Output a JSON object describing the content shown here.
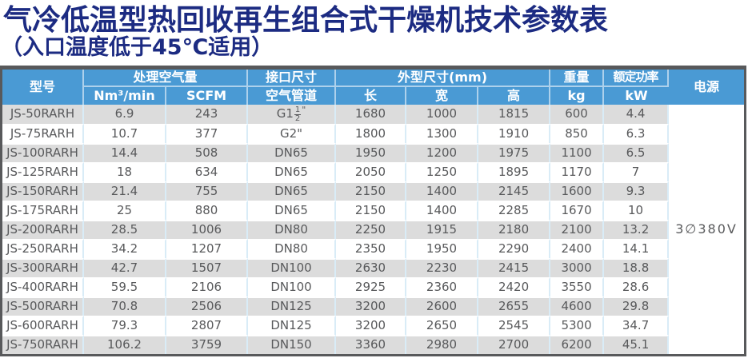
{
  "title": "气冷低温型热回收再生组合式干燥机技术参数表",
  "subtitle": "（入口温度低于45℃适用）",
  "colors": {
    "title": "#1C2B82",
    "header_bg": "#4A9AD4",
    "row_alt": "#DCDCDC",
    "body_text": "#58595B",
    "border_dark": "#58595B",
    "divider_blue": "#D9ECF7"
  },
  "table": {
    "header": {
      "model": "型号",
      "air_group": "处理空气量",
      "air_sub": [
        "Nm³/min",
        "SCFM"
      ],
      "port_group": "接口尺寸",
      "port_sub": "空气管道",
      "dims_group": "外型尺寸(mm)",
      "dims_sub": [
        "长",
        "宽",
        "高"
      ],
      "weight_group": "重量",
      "weight_sub": "kg",
      "power_group": "额定功率",
      "power_sub": "kW",
      "supply": "电源"
    },
    "power_supply": "3∅380V",
    "rows": [
      [
        "JS-50RARH",
        "6.9",
        "243",
        "G1{1/2}\"",
        "1680",
        "1000",
        "1815",
        "600",
        "4.4"
      ],
      [
        "JS-75RARH",
        "10.7",
        "377",
        "G2\"",
        "1800",
        "1300",
        "1910",
        "850",
        "6.3"
      ],
      [
        "JS-100RARH",
        "14.4",
        "508",
        "DN65",
        "1950",
        "1200",
        "1975",
        "1100",
        "6.5"
      ],
      [
        "JS-125RARH",
        "18",
        "634",
        "DN65",
        "2050",
        "1250",
        "1895",
        "1170",
        "7"
      ],
      [
        "JS-150RARH",
        "21.4",
        "755",
        "DN65",
        "2150",
        "1400",
        "2145",
        "1600",
        "9.3"
      ],
      [
        "JS-175RARH",
        "25",
        "880",
        "DN65",
        "2150",
        "1400",
        "2285",
        "1670",
        "10"
      ],
      [
        "JS-200RARH",
        "28.5",
        "1006",
        "DN80",
        "2250",
        "1915",
        "2180",
        "2100",
        "13.2"
      ],
      [
        "JS-250RARH",
        "34.2",
        "1207",
        "DN80",
        "2350",
        "1950",
        "2290",
        "2400",
        "14.1"
      ],
      [
        "JS-300RARH",
        "42.7",
        "1507",
        "DN100",
        "2630",
        "2230",
        "2415",
        "3000",
        "18.8"
      ],
      [
        "JS-400RARH",
        "59.5",
        "2106",
        "DN100",
        "2925",
        "2360",
        "2420",
        "3550",
        "28.6"
      ],
      [
        "JS-500RARH",
        "70.8",
        "2506",
        "DN125",
        "3200",
        "2600",
        "2655",
        "4600",
        "29.8"
      ],
      [
        "JS-600RARH",
        "79.3",
        "2807",
        "DN125",
        "3200",
        "2650",
        "2545",
        "5300",
        "34.7"
      ],
      [
        "JS-750RARH",
        "106.2",
        "3759",
        "DN150",
        "3360",
        "2980",
        "2700",
        "6200",
        "45.1"
      ]
    ]
  }
}
